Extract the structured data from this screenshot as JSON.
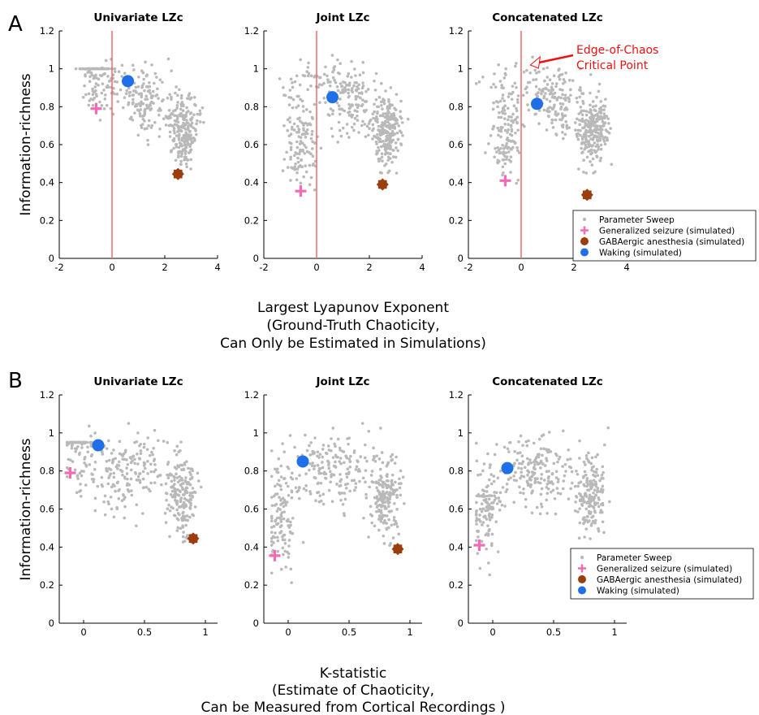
{
  "figure": {
    "panel_a_label": "A",
    "panel_b_label": "B",
    "ylabel": "Information-richness",
    "panel_a_xlabel": [
      "Largest Lyapunov Exponent",
      "(Ground-Truth Chaoticity,",
      "Can Only be Estimated in Simulations)"
    ],
    "panel_b_xlabel": [
      "K-statistic",
      "(Estimate of Chaoticity,",
      "Can be Measured from Cortical Recordings )"
    ],
    "annotation_lines": [
      "Edge-of-Chaos",
      "Critical Point"
    ],
    "legend": [
      {
        "label": "Parameter Sweep",
        "marker": "dot",
        "color": "#b9b9b9"
      },
      {
        "label": "Generalized seizure (simulated)",
        "marker": "plus",
        "color": "#f26bb5"
      },
      {
        "label": "GABAergic anesthesia (simulated)",
        "marker": "star",
        "color": "#9b3d0c"
      },
      {
        "label": "Waking (simulated)",
        "marker": "circle",
        "color": "#1f6fe8"
      }
    ],
    "colors": {
      "sweep": "#b9b9b9",
      "seizure": "#f26bb5",
      "anesthesia": "#9b3d0c",
      "waking": "#1f6fe8",
      "critical_line": "#f26060",
      "annotation": "#ee1111"
    }
  },
  "chart_data": [
    {
      "panel": "A",
      "type": "scatter",
      "title": "Univariate LZc",
      "xlabel": "",
      "ylabel": "Information-richness",
      "xlim": [
        -2,
        4
      ],
      "ylim": [
        0,
        1.2
      ],
      "xticks": [
        "-2",
        "0",
        "2",
        "4"
      ],
      "yticks": [
        "0",
        "0.2",
        "0.4",
        "0.6",
        "0.8",
        "1",
        "1.2"
      ],
      "vline_x": 0,
      "legend": false,
      "points": {
        "seizure": [
          -0.6,
          0.79
        ],
        "waking": [
          0.6,
          0.935
        ],
        "anesthesia": [
          2.5,
          0.445
        ]
      }
    },
    {
      "panel": "A",
      "type": "scatter",
      "title": "Joint LZc",
      "xlabel": "",
      "ylabel": "",
      "xlim": [
        -2,
        4
      ],
      "ylim": [
        0,
        1.2
      ],
      "xticks": [
        "-2",
        "0",
        "2",
        "4"
      ],
      "yticks": [
        "0",
        "0.2",
        "0.4",
        "0.6",
        "0.8",
        "1",
        "1.2"
      ],
      "vline_x": 0,
      "legend": false,
      "points": {
        "seizure": [
          -0.6,
          0.355
        ],
        "waking": [
          0.6,
          0.85
        ],
        "anesthesia": [
          2.5,
          0.39
        ]
      }
    },
    {
      "panel": "A",
      "type": "scatter",
      "title": "Concatenated LZc",
      "xlabel": "",
      "ylabel": "",
      "xlim": [
        -2,
        4
      ],
      "ylim": [
        0,
        1.2
      ],
      "xticks": [
        "-2",
        "0",
        "2",
        "4"
      ],
      "yticks": [
        "0",
        "0.2",
        "0.4",
        "0.6",
        "0.8",
        "1",
        "1.2"
      ],
      "vline_x": 0,
      "legend": true,
      "annotation": true,
      "points": {
        "seizure": [
          -0.6,
          0.41
        ],
        "waking": [
          0.6,
          0.815
        ],
        "anesthesia": [
          2.5,
          0.335
        ]
      }
    },
    {
      "panel": "B",
      "type": "scatter",
      "title": "Univariate LZc",
      "xlabel": "",
      "ylabel": "Information-richness",
      "xlim": [
        -0.2,
        1.1
      ],
      "ylim": [
        0,
        1.2
      ],
      "xticks": [
        "0",
        "0.5",
        "1"
      ],
      "yticks": [
        "0",
        "0.2",
        "0.4",
        "0.6",
        "0.8",
        "1",
        "1.2"
      ],
      "legend": false,
      "points": {
        "seizure": [
          -0.11,
          0.79
        ],
        "waking": [
          0.12,
          0.935
        ],
        "anesthesia": [
          0.9,
          0.445
        ]
      }
    },
    {
      "panel": "B",
      "type": "scatter",
      "title": "Joint LZc",
      "xlabel": "",
      "ylabel": "",
      "xlim": [
        -0.2,
        1.1
      ],
      "ylim": [
        0,
        1.2
      ],
      "xticks": [
        "0",
        "0.5",
        "1"
      ],
      "yticks": [
        "0",
        "0.2",
        "0.4",
        "0.6",
        "0.8",
        "1",
        "1.2"
      ],
      "legend": false,
      "points": {
        "seizure": [
          -0.11,
          0.355
        ],
        "waking": [
          0.12,
          0.85
        ],
        "anesthesia": [
          0.9,
          0.39
        ]
      }
    },
    {
      "panel": "B",
      "type": "scatter",
      "title": "Concatenated LZc",
      "xlabel": "",
      "ylabel": "",
      "xlim": [
        -0.2,
        1.1
      ],
      "ylim": [
        0,
        1.2
      ],
      "xticks": [
        "0",
        "0.5",
        "1"
      ],
      "yticks": [
        "0",
        "0.2",
        "0.4",
        "0.6",
        "0.8",
        "1",
        "1.2"
      ],
      "legend": true,
      "points": {
        "seizure": [
          -0.11,
          0.41
        ],
        "waking": [
          0.12,
          0.815
        ],
        "anesthesia": [
          0.9,
          0.335
        ]
      }
    }
  ]
}
